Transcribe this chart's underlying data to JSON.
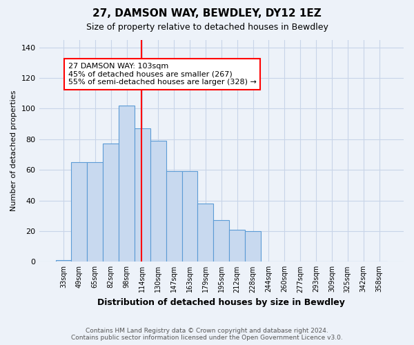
{
  "title": "27, DAMSON WAY, BEWDLEY, DY12 1EZ",
  "subtitle": "Size of property relative to detached houses in Bewdley",
  "xlabel": "Distribution of detached houses by size in Bewdley",
  "ylabel": "Number of detached properties",
  "categories": [
    "33sqm",
    "49sqm",
    "65sqm",
    "82sqm",
    "98sqm",
    "114sqm",
    "130sqm",
    "147sqm",
    "163sqm",
    "179sqm",
    "195sqm",
    "212sqm",
    "228sqm",
    "244sqm",
    "260sqm",
    "277sqm",
    "293sqm",
    "309sqm",
    "325sqm",
    "342sqm",
    "358sqm"
  ],
  "values": [
    1,
    65,
    65,
    77,
    102,
    87,
    79,
    59,
    59,
    38,
    27,
    21,
    20,
    0,
    0,
    0,
    0,
    0,
    0,
    0,
    0
  ],
  "bar_color": "#c8d9ef",
  "bar_edge_color": "#5b9bd5",
  "vline_x": 4.95,
  "vline_color": "red",
  "annotation_text": "27 DAMSON WAY: 103sqm\n45% of detached houses are smaller (267)\n55% of semi-detached houses are larger (328) →",
  "annotation_box_color": "white",
  "annotation_box_edge": "red",
  "ylim": [
    0,
    145
  ],
  "yticks": [
    0,
    20,
    40,
    60,
    80,
    100,
    120,
    140
  ],
  "footer_line1": "Contains HM Land Registry data © Crown copyright and database right 2024.",
  "footer_line2": "Contains public sector information licensed under the Open Government Licence v3.0.",
  "background_color": "#edf2f9",
  "grid_color": "#c8d4e8"
}
